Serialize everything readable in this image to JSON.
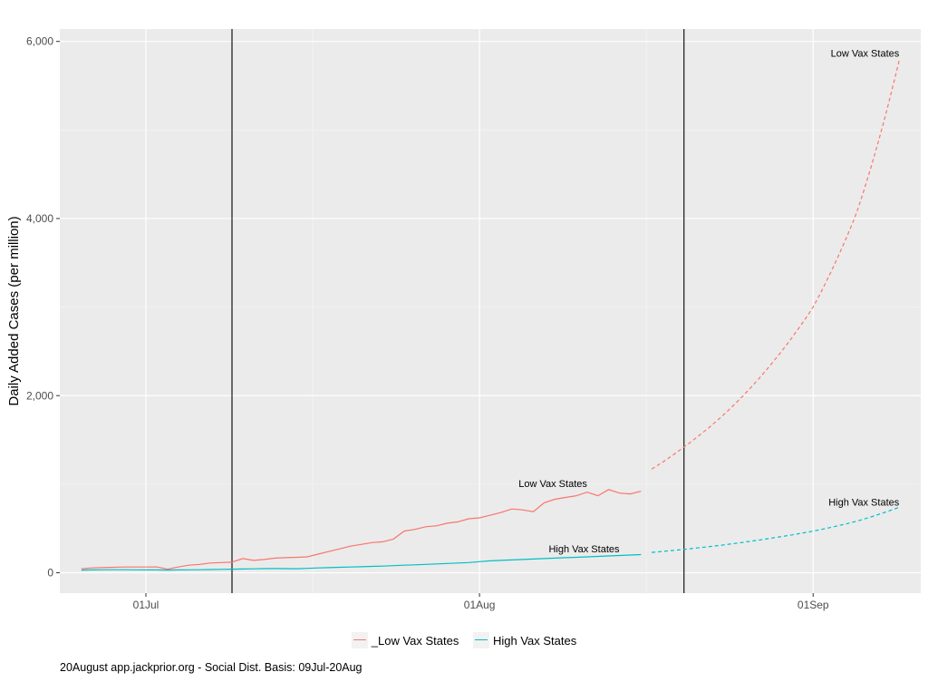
{
  "chart_data": {
    "type": "line",
    "title": "",
    "xlabel": "",
    "ylabel": "Daily Added Cases (per million)",
    "x_range": [
      "2021-06-23",
      "2021-09-11"
    ],
    "ylim": [
      -230,
      6140
    ],
    "y_ticks": [
      0,
      2000,
      4000,
      6000
    ],
    "y_tick_labels": [
      "0",
      "2,000",
      "4,000",
      "6,000"
    ],
    "x_ticks": [
      "2021-07-01",
      "2021-08-01",
      "2021-09-01"
    ],
    "x_tick_labels": [
      "01Jul",
      "01Aug",
      "01Sep"
    ],
    "grid": true,
    "legend_position": "bottom",
    "vlines": [
      "2021-07-09",
      "2021-08-20"
    ],
    "series": [
      {
        "name": "_Low Vax States",
        "color": "#F8766D",
        "style": "solid",
        "x": [
          "2021-06-25",
          "2021-06-26",
          "2021-06-27",
          "2021-06-28",
          "2021-06-29",
          "2021-06-30",
          "2021-07-01",
          "2021-07-02",
          "2021-07-03",
          "2021-07-04",
          "2021-07-05",
          "2021-07-06",
          "2021-07-07",
          "2021-07-08",
          "2021-07-09",
          "2021-07-10",
          "2021-07-11",
          "2021-07-12",
          "2021-07-13",
          "2021-07-14",
          "2021-07-15",
          "2021-07-16",
          "2021-07-17",
          "2021-07-18",
          "2021-07-19",
          "2021-07-20",
          "2021-07-21",
          "2021-07-22",
          "2021-07-23",
          "2021-07-24",
          "2021-07-25",
          "2021-07-26",
          "2021-07-27",
          "2021-07-28",
          "2021-07-29",
          "2021-07-30",
          "2021-07-31",
          "2021-08-01",
          "2021-08-02",
          "2021-08-03",
          "2021-08-04",
          "2021-08-05",
          "2021-08-06",
          "2021-08-07",
          "2021-08-08",
          "2021-08-09",
          "2021-08-10",
          "2021-08-11",
          "2021-08-12",
          "2021-08-13",
          "2021-08-14",
          "2021-08-15",
          "2021-08-16"
        ],
        "values": [
          45,
          55,
          58,
          62,
          65,
          65,
          65,
          66,
          40,
          65,
          85,
          95,
          110,
          115,
          120,
          160,
          140,
          150,
          165,
          170,
          175,
          180,
          210,
          240,
          270,
          300,
          320,
          340,
          350,
          380,
          470,
          490,
          520,
          530,
          560,
          575,
          610,
          620,
          650,
          680,
          720,
          710,
          690,
          790,
          830,
          850,
          870,
          910,
          870,
          940,
          900,
          890,
          920
        ]
      },
      {
        "name": "High Vax States",
        "color": "#00BFC4",
        "style": "solid",
        "x": [
          "2021-06-25",
          "2021-06-26",
          "2021-06-27",
          "2021-06-28",
          "2021-06-29",
          "2021-06-30",
          "2021-07-01",
          "2021-07-02",
          "2021-07-03",
          "2021-07-04",
          "2021-07-05",
          "2021-07-06",
          "2021-07-07",
          "2021-07-08",
          "2021-07-09",
          "2021-07-10",
          "2021-07-11",
          "2021-07-12",
          "2021-07-13",
          "2021-07-14",
          "2021-07-15",
          "2021-07-16",
          "2021-07-17",
          "2021-07-18",
          "2021-07-19",
          "2021-07-20",
          "2021-07-21",
          "2021-07-22",
          "2021-07-23",
          "2021-07-24",
          "2021-07-25",
          "2021-07-26",
          "2021-07-27",
          "2021-07-28",
          "2021-07-29",
          "2021-07-30",
          "2021-07-31",
          "2021-08-01",
          "2021-08-02",
          "2021-08-03",
          "2021-08-04",
          "2021-08-05",
          "2021-08-06",
          "2021-08-07",
          "2021-08-08",
          "2021-08-09",
          "2021-08-10",
          "2021-08-11",
          "2021-08-12",
          "2021-08-13",
          "2021-08-14",
          "2021-08-15",
          "2021-08-16"
        ],
        "values": [
          30,
          32,
          33,
          34,
          34,
          33,
          32,
          32,
          30,
          32,
          33,
          34,
          36,
          38,
          40,
          42,
          44,
          46,
          48,
          46,
          45,
          50,
          55,
          58,
          62,
          65,
          68,
          72,
          75,
          80,
          85,
          90,
          95,
          100,
          105,
          110,
          115,
          125,
          135,
          140,
          145,
          150,
          155,
          160,
          165,
          170,
          175,
          180,
          185,
          190,
          195,
          200,
          205
        ]
      },
      {
        "name": "Low Vax States projection",
        "color": "#F8766D",
        "style": "dashed",
        "x": [
          "2021-08-17",
          "2021-08-20",
          "2021-08-24",
          "2021-08-28",
          "2021-09-01",
          "2021-09-05",
          "2021-09-09"
        ],
        "values": [
          1170,
          1420,
          1820,
          2340,
          3000,
          4050,
          5790
        ]
      },
      {
        "name": "High Vax States projection",
        "color": "#00BFC4",
        "style": "dashed",
        "x": [
          "2021-08-17",
          "2021-08-22",
          "2021-08-27",
          "2021-09-01",
          "2021-09-05",
          "2021-09-09"
        ],
        "values": [
          230,
          290,
          370,
          470,
          580,
          740
        ]
      }
    ],
    "annotations": [
      {
        "text": "Low Vax States",
        "x": "2021-09-09",
        "y": 5830,
        "anchor": "end"
      },
      {
        "text": "High Vax States",
        "x": "2021-09-09",
        "y": 760,
        "anchor": "end"
      },
      {
        "text": "Low Vax States",
        "x": "2021-08-11",
        "y": 970,
        "anchor": "end"
      },
      {
        "text": "High Vax States",
        "x": "2021-08-14",
        "y": 230,
        "anchor": "end"
      }
    ]
  },
  "legend": {
    "items": [
      {
        "label": "_Low Vax States",
        "color": "#F8766D"
      },
      {
        "label": "High Vax States",
        "color": "#00BFC4"
      }
    ]
  },
  "caption": "20August app.jackprior.org  - Social Dist. Basis: 09Jul-20Aug"
}
